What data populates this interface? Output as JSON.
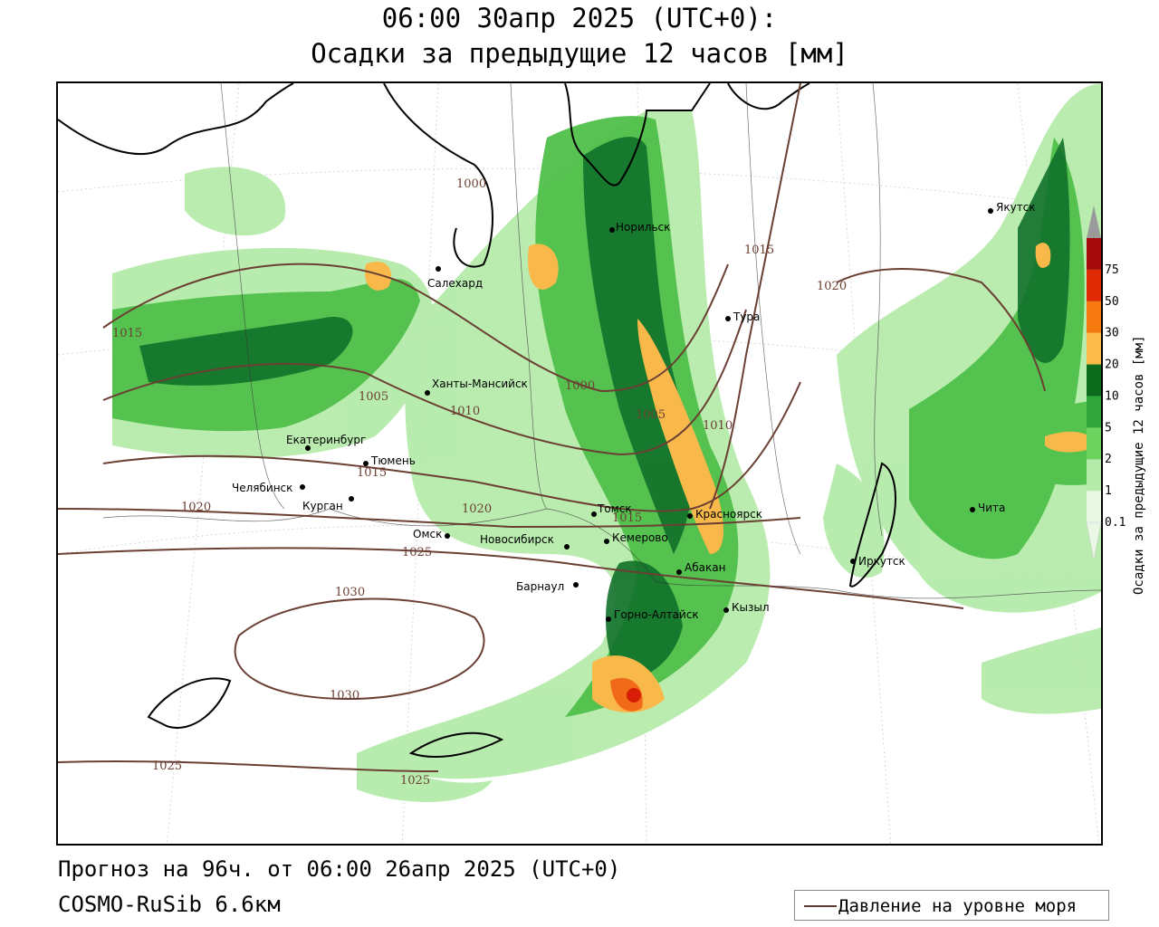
{
  "header": {
    "line1": "06:00 30апр 2025 (UTC+0):",
    "line2": "Осадки за предыдущие 12 часов [мм]"
  },
  "footer": {
    "forecast": "Прогноз на 96ч. от 06:00 26апр 2025 (UTC+0)",
    "model": "COSMO-RuSib 6.6км"
  },
  "legend": {
    "pressure": "Давление на уровне моря"
  },
  "colorbar": {
    "label": "Осадки за предыдущие 12 часов [мм]",
    "ticks": [
      "0.1",
      "1",
      "2",
      "5",
      "10",
      "20",
      "30",
      "50",
      "75"
    ],
    "colors": [
      "#e9f7e5",
      "#b5ebaa",
      "#6fd35f",
      "#2fa53a",
      "#0c6b1c",
      "#fbbb4a",
      "#f77a11",
      "#e02a06",
      "#a50a0a",
      "#9a9a9a"
    ]
  },
  "cities": [
    {
      "name": "Салехард"
    },
    {
      "name": "Норильск"
    },
    {
      "name": "Тура"
    },
    {
      "name": "Якутск"
    },
    {
      "name": "Ханты-Мансийск"
    },
    {
      "name": "Екатеринбург"
    },
    {
      "name": "Тюмень"
    },
    {
      "name": "Челябинск"
    },
    {
      "name": "Курган"
    },
    {
      "name": "Омск"
    },
    {
      "name": "Томск"
    },
    {
      "name": "Новосибирск"
    },
    {
      "name": "Кемерово"
    },
    {
      "name": "Красноярск"
    },
    {
      "name": "Абакан"
    },
    {
      "name": "Барнаул"
    },
    {
      "name": "Горно-Алтайск"
    },
    {
      "name": "Кызыл"
    },
    {
      "name": "Иркутск"
    },
    {
      "name": "Чита"
    }
  ],
  "isobars": [
    "1000",
    "1015",
    "1015",
    "1020",
    "1005",
    "1010",
    "1000",
    "1005",
    "1010",
    "1015",
    "1020",
    "1015",
    "1020",
    "1025",
    "1030",
    "1030",
    "1025",
    "1025"
  ]
}
